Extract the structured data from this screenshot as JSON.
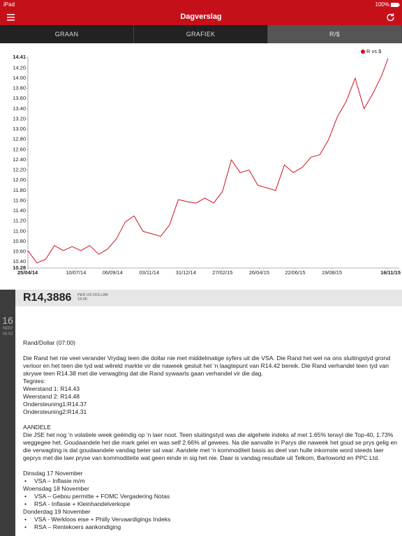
{
  "status": {
    "carrier": "iPad",
    "battery": "100%"
  },
  "header": {
    "title": "Dagverslag"
  },
  "tabs": [
    "GRAAN",
    "GRAFIEK",
    "R/$"
  ],
  "chart_data": {
    "type": "line",
    "x": [
      "2014-04-25",
      "2014-05-09",
      "2014-05-23",
      "2014-06-06",
      "2014-06-20",
      "2014-07-04",
      "2014-07-18",
      "2014-08-01",
      "2014-08-15",
      "2014-08-29",
      "2014-09-12",
      "2014-09-26",
      "2014-10-10",
      "2014-10-24",
      "2014-11-07",
      "2014-11-21",
      "2014-12-05",
      "2014-12-19",
      "2015-01-02",
      "2015-01-16",
      "2015-01-30",
      "2015-02-13",
      "2015-02-27",
      "2015-03-13",
      "2015-03-27",
      "2015-04-10",
      "2015-04-24",
      "2015-05-08",
      "2015-05-22",
      "2015-06-05",
      "2015-06-19",
      "2015-07-03",
      "2015-07-17",
      "2015-07-31",
      "2015-08-14",
      "2015-08-28",
      "2015-09-11",
      "2015-09-25",
      "2015-10-09",
      "2015-10-23",
      "2015-11-06",
      "2015-11-16"
    ],
    "series": [
      {
        "name": "R vs $",
        "color": "#d0111b",
        "values": [
          10.62,
          10.38,
          10.45,
          10.72,
          10.62,
          10.7,
          10.62,
          10.72,
          10.55,
          10.65,
          10.85,
          11.18,
          11.3,
          11.0,
          10.95,
          10.9,
          11.12,
          11.62,
          11.58,
          11.55,
          11.65,
          11.55,
          11.78,
          12.4,
          12.15,
          12.2,
          11.9,
          11.85,
          11.8,
          12.3,
          12.15,
          12.25,
          12.45,
          12.5,
          12.8,
          13.25,
          13.55,
          14.0,
          13.4,
          13.7,
          14.05,
          14.39
        ]
      }
    ],
    "xlim": [
      "2014-04-25",
      "2015-11-16"
    ],
    "xticks": [
      {
        "value": "2014-04-25",
        "label": "25/04/14"
      },
      {
        "value": "2014-07-10",
        "label": "10/07/14"
      },
      {
        "value": "2014-09-06",
        "label": "06/09/14"
      },
      {
        "value": "2014-11-03",
        "label": "03/11/14"
      },
      {
        "value": "2014-12-31",
        "label": "31/12/14"
      },
      {
        "value": "2015-02-27",
        "label": "27/02/15"
      },
      {
        "value": "2015-04-26",
        "label": "26/04/15"
      },
      {
        "value": "2015-06-22",
        "label": "22/06/15"
      },
      {
        "value": "2015-08-19",
        "label": "19/08/15"
      },
      {
        "value": "2015-11-16",
        "label": "16/11/15"
      }
    ],
    "ylim": [
      10.28,
      14.41
    ],
    "yticks": [
      14.41,
      {
        "value": 14.2,
        "label": "14.20"
      },
      {
        "value": 14.0,
        "label": "14.00"
      },
      {
        "value": 13.8,
        "label": "13.80"
      },
      {
        "value": 13.6,
        "label": "13.60"
      },
      {
        "value": 13.4,
        "label": "13.40"
      },
      {
        "value": 13.2,
        "label": "13.20"
      },
      {
        "value": 13.0,
        "label": "13.00"
      },
      {
        "value": 12.8,
        "label": "12.80"
      },
      {
        "value": 12.6,
        "label": "12.60"
      },
      {
        "value": 12.4,
        "label": "12.40"
      },
      {
        "value": 12.2,
        "label": "12.20"
      },
      {
        "value": 12.0,
        "label": "12.00"
      },
      {
        "value": 11.8,
        "label": "11.80"
      },
      {
        "value": 11.6,
        "label": "11.60"
      },
      {
        "value": 11.4,
        "label": "11.40"
      },
      {
        "value": 11.2,
        "label": "11.20"
      },
      {
        "value": 11.0,
        "label": "11.00"
      },
      {
        "value": 10.8,
        "label": "10.80"
      },
      {
        "value": 10.6,
        "label": "10.60"
      },
      {
        "value": 10.4,
        "label": "10.40"
      },
      10.28
    ],
    "legend": "upper right"
  },
  "quote": {
    "price": "R14,3886",
    "unit": "PER US DOLLAR",
    "time": "19:06"
  },
  "date_badge": {
    "day": "16",
    "month": "NOV",
    "time": "06:53"
  },
  "article": {
    "heading": "Rand/Dollar (07:00)",
    "paragraph1": "Die Rand het nie veel verander Vrydag teen die dollar nie met middelmatige syfers uit die VSA. Die Rand het wel na ons sluitingstyd grond verloor en het teen die tyd wat wêreld markte vir die naweek gesluit het ‘n laagtepunt van R14.42 bereik. Die Rand verhandel teen tyd van skrywe teen R14.38 met die verwagting dat die Rand sywaarts gaan verhandel vir die dag.",
    "technical": [
      "Tegnies:",
      "Weerstand 1: R14.43",
      "Weerstand 2: R14.48",
      "Ondersteuning1:R14.37",
      "Ondersteuning2:R14.31"
    ],
    "heading2": "AANDELE",
    "paragraph2": "Die JSE het nog ‘n volatiele week geëindig op ‘n laer noot. Teen sluitingstyd was die algehele indeks af met 1.65% terwyl die Top-40, 1.73% weggegee het. Goudaandele het die mark gelei en was self 2.66% af gewees. Na die aanvalle in Parys die naweek het goud se prys gelig en die verwagting is dat goudaandele vandag beter sal vaar. Aandele met ‘n kommoditeit basis as deel van hulle inkomste word steeds laer geprys met die laer pryse van kommoditeite wat geen einde in sig het nie. Daar is vandag resultate uit Telkom, Barloworld en PPC Ltd.",
    "schedule": [
      {
        "day": "Dinsdag 17 November",
        "items": [
          "VSA – Inflasie m/m"
        ]
      },
      {
        "day": "Woensdag 18 November",
        "items": [
          "VSA – Gebou permitte + FOMC Vergadering Notas",
          "RSA  - Inflasie + Kleinhandelverkope"
        ]
      },
      {
        "day": "Donderdag 19 November",
        "items": [
          "VSA - Werkloos eise + Philly Vervaardigings Indeks",
          "RSA – Rentekoers aankondiging"
        ]
      }
    ]
  }
}
